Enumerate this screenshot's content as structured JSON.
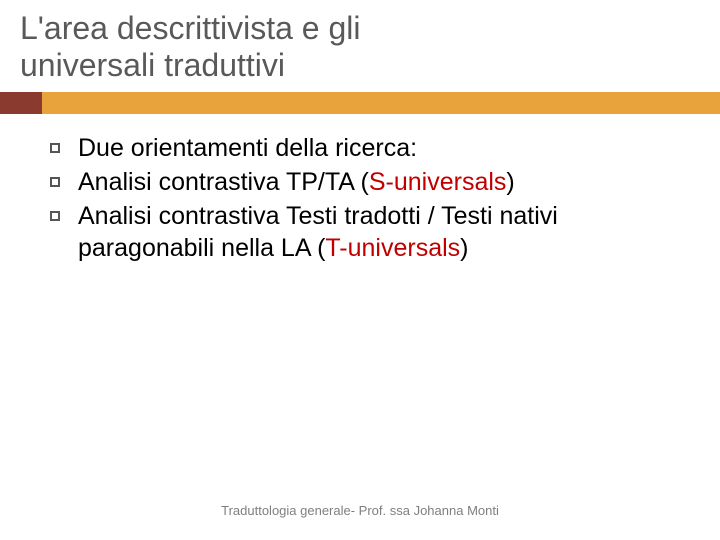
{
  "title_line1": "L'area descrittivista e gli",
  "title_line2": "universali traduttivi",
  "colors": {
    "accent_left": "#8b3a2f",
    "accent_right": "#e8a33d",
    "title_text": "#595959",
    "body_text": "#000000",
    "highlight": "#c00000",
    "footer_text": "#7f7f7f",
    "background": "#ffffff"
  },
  "typography": {
    "title_fontsize": 32,
    "body_fontsize": 25,
    "footer_fontsize": 13,
    "font_family": "Arial"
  },
  "bullets": [
    {
      "pre": "Due orientamenti della ricerca:",
      "hl": "",
      "post": ""
    },
    {
      "pre": "Analisi contrastiva TP/TA (",
      "hl": "S-universals",
      "post": ")"
    },
    {
      "pre": "Analisi contrastiva Testi tradotti / Testi nativi paragonabili nella LA (",
      "hl": "T-universals",
      "post": ")"
    }
  ],
  "footer": "Traduttologia generale- Prof. ssa Johanna Monti"
}
